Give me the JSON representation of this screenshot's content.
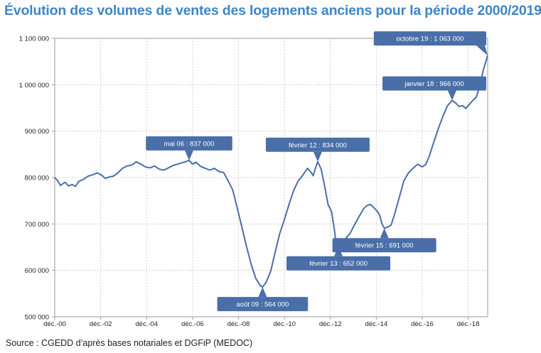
{
  "title": "Évolution des volumes de ventes des logements anciens pour la période 2000/2019",
  "source": "Source : CGEDD d’après bases notariales et DGFiP (MEDOC)",
  "colors": {
    "title": "#3f86c7",
    "line": "#4a6fa8",
    "callout": "#4a6fa8",
    "grid": "#c8c8c8",
    "frame": "#9a9a9a"
  },
  "chart_data": {
    "type": "line",
    "title": "Évolution des volumes de ventes des logements anciens pour la période 2000/2019",
    "xlabel": "",
    "ylabel": "",
    "ylim": [
      500000,
      1100000
    ],
    "grid": true,
    "y_ticks": [
      {
        "value": 500000,
        "label": "500 000"
      },
      {
        "value": 600000,
        "label": "600 000"
      },
      {
        "value": 700000,
        "label": "700 000"
      },
      {
        "value": 800000,
        "label": "800 000"
      },
      {
        "value": 900000,
        "label": "900 000"
      },
      {
        "value": 1000000,
        "label": "1 000 000"
      },
      {
        "value": 1100000,
        "label": "1 100 000"
      }
    ],
    "x_ticks": [
      {
        "value": 2000.95,
        "label": "déc.-00"
      },
      {
        "value": 2002.95,
        "label": "déc.-02"
      },
      {
        "value": 2004.95,
        "label": "déc.-04"
      },
      {
        "value": 2006.95,
        "label": "déc.-06"
      },
      {
        "value": 2008.95,
        "label": "déc.-08"
      },
      {
        "value": 2010.95,
        "label": "déc.-10"
      },
      {
        "value": 2012.95,
        "label": "déc.-12"
      },
      {
        "value": 2014.95,
        "label": "déc.-14"
      },
      {
        "value": 2016.95,
        "label": "déc.-16"
      },
      {
        "value": 2018.95,
        "label": "déc.-18"
      }
    ],
    "xlim": [
      2000.95,
      2019.8
    ],
    "series": [
      {
        "points": [
          [
            2000.95,
            800000
          ],
          [
            2001.05,
            795000
          ],
          [
            2001.2,
            783000
          ],
          [
            2001.4,
            790000
          ],
          [
            2001.55,
            782000
          ],
          [
            2001.7,
            785000
          ],
          [
            2001.85,
            781000
          ],
          [
            2002.0,
            792000
          ],
          [
            2002.2,
            796000
          ],
          [
            2002.4,
            803000
          ],
          [
            2002.6,
            806000
          ],
          [
            2002.8,
            810000
          ],
          [
            2003.0,
            805000
          ],
          [
            2003.15,
            798000
          ],
          [
            2003.3,
            801000
          ],
          [
            2003.5,
            803000
          ],
          [
            2003.7,
            810000
          ],
          [
            2003.9,
            820000
          ],
          [
            2004.1,
            825000
          ],
          [
            2004.3,
            827000
          ],
          [
            2004.5,
            834000
          ],
          [
            2004.7,
            829000
          ],
          [
            2004.9,
            823000
          ],
          [
            2005.1,
            821000
          ],
          [
            2005.3,
            825000
          ],
          [
            2005.5,
            818000
          ],
          [
            2005.7,
            816000
          ],
          [
            2005.9,
            821000
          ],
          [
            2006.1,
            826000
          ],
          [
            2006.3,
            829000
          ],
          [
            2006.5,
            832000
          ],
          [
            2006.7,
            835000
          ],
          [
            2006.8,
            837000
          ],
          [
            2006.95,
            829000
          ],
          [
            2007.1,
            833000
          ],
          [
            2007.3,
            824000
          ],
          [
            2007.5,
            820000
          ],
          [
            2007.7,
            816000
          ],
          [
            2007.9,
            820000
          ],
          [
            2008.1,
            813000
          ],
          [
            2008.3,
            811000
          ],
          [
            2008.5,
            793000
          ],
          [
            2008.7,
            773000
          ],
          [
            2008.9,
            734000
          ],
          [
            2009.1,
            693000
          ],
          [
            2009.3,
            651000
          ],
          [
            2009.5,
            614000
          ],
          [
            2009.7,
            583000
          ],
          [
            2009.9,
            567000
          ],
          [
            2010.0,
            564000
          ],
          [
            2010.15,
            574000
          ],
          [
            2010.35,
            598000
          ],
          [
            2010.55,
            640000
          ],
          [
            2010.75,
            680000
          ],
          [
            2010.95,
            710000
          ],
          [
            2011.15,
            742000
          ],
          [
            2011.35,
            772000
          ],
          [
            2011.55,
            793000
          ],
          [
            2011.75,
            805000
          ],
          [
            2011.95,
            820000
          ],
          [
            2012.1,
            812000
          ],
          [
            2012.2,
            804000
          ],
          [
            2012.3,
            820000
          ],
          [
            2012.4,
            834000
          ],
          [
            2012.55,
            818000
          ],
          [
            2012.7,
            782000
          ],
          [
            2012.85,
            742000
          ],
          [
            2013.0,
            727000
          ],
          [
            2013.1,
            697000
          ],
          [
            2013.2,
            660000
          ],
          [
            2013.3,
            652000
          ],
          [
            2013.45,
            658000
          ],
          [
            2013.6,
            668000
          ],
          [
            2013.8,
            679000
          ],
          [
            2014.0,
            698000
          ],
          [
            2014.2,
            716000
          ],
          [
            2014.4,
            733000
          ],
          [
            2014.55,
            740000
          ],
          [
            2014.7,
            742000
          ],
          [
            2014.85,
            735000
          ],
          [
            2015.0,
            727000
          ],
          [
            2015.1,
            718000
          ],
          [
            2015.2,
            700000
          ],
          [
            2015.3,
            691000
          ],
          [
            2015.45,
            693000
          ],
          [
            2015.6,
            698000
          ],
          [
            2015.75,
            722000
          ],
          [
            2015.95,
            757000
          ],
          [
            2016.15,
            793000
          ],
          [
            2016.35,
            810000
          ],
          [
            2016.55,
            820000
          ],
          [
            2016.75,
            829000
          ],
          [
            2016.95,
            823000
          ],
          [
            2017.1,
            828000
          ],
          [
            2017.25,
            845000
          ],
          [
            2017.45,
            876000
          ],
          [
            2017.65,
            905000
          ],
          [
            2017.85,
            932000
          ],
          [
            2018.05,
            955000
          ],
          [
            2018.25,
            966000
          ],
          [
            2018.4,
            961000
          ],
          [
            2018.55,
            953000
          ],
          [
            2018.7,
            955000
          ],
          [
            2018.85,
            949000
          ],
          [
            2019.0,
            958000
          ],
          [
            2019.15,
            966000
          ],
          [
            2019.3,
            973000
          ],
          [
            2019.45,
            995000
          ],
          [
            2019.6,
            1030000
          ],
          [
            2019.72,
            1050000
          ],
          [
            2019.8,
            1063000
          ]
        ]
      }
    ],
    "annotations": [
      {
        "text": "mai 06 : 837 000",
        "x": 2006.8,
        "y": 837000,
        "side": "above"
      },
      {
        "text": "août 09 : 564 000",
        "x": 2010.0,
        "y": 564000,
        "side": "below"
      },
      {
        "text": "février 12 : 834 000",
        "x": 2012.4,
        "y": 834000,
        "side": "above"
      },
      {
        "text": "février 13 : 652 000",
        "x": 2013.3,
        "y": 652000,
        "side": "below"
      },
      {
        "text": "février 15 : 691 000",
        "x": 2015.3,
        "y": 691000,
        "side": "below"
      },
      {
        "text": "janvier 18 : 966 000",
        "x": 2018.25,
        "y": 966000,
        "side": "above"
      },
      {
        "text": "octobre 19 : 1 063 000",
        "x": 2019.8,
        "y": 1063000,
        "side": "above"
      }
    ]
  }
}
